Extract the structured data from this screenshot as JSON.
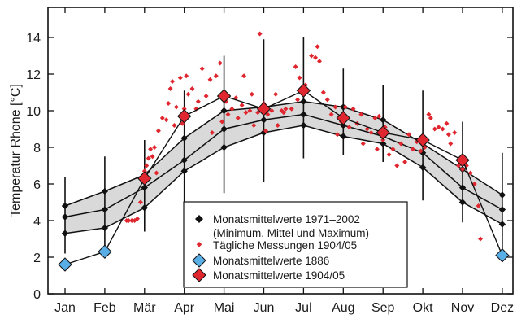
{
  "chart_data": {
    "type": "line",
    "ylabel": "Temperatur Rhone [°C]",
    "xlabel": "",
    "ylim": [
      0,
      15
    ],
    "yticks": [
      0,
      2,
      4,
      6,
      8,
      10,
      12,
      14
    ],
    "categories": [
      "Jan",
      "Feb",
      "Mär",
      "Apr",
      "Mai",
      "Jun",
      "Jul",
      "Aug",
      "Sep",
      "Okt",
      "Nov",
      "Dez"
    ],
    "grid": false,
    "legend_position": "bottom-center",
    "band": {
      "name": "Monatsmittelwerte 1971–2002",
      "sub": "(Minimum, Mittel und Maximum)",
      "min": [
        3.3,
        3.6,
        4.7,
        6.7,
        8.0,
        8.8,
        9.2,
        8.6,
        8.2,
        6.9,
        5.0,
        3.8
      ],
      "mean": [
        4.2,
        4.6,
        5.8,
        7.3,
        9.0,
        9.5,
        9.8,
        9.2,
        8.6,
        7.7,
        5.8,
        4.6
      ],
      "max": [
        4.8,
        5.6,
        6.5,
        8.5,
        10.0,
        10.2,
        10.5,
        10.2,
        9.5,
        8.2,
        6.8,
        5.4
      ]
    },
    "whiskers": {
      "low": [
        2.2,
        2.0,
        3.4,
        3.9,
        5.5,
        6.1,
        7.4,
        7.6,
        7.2,
        5.1,
        3.9,
        2.1
      ],
      "high": [
        6.4,
        7.5,
        8.4,
        11.1,
        13.0,
        13.9,
        14.0,
        12.3,
        11.4,
        11.1,
        9.4,
        7.7
      ]
    },
    "series": [
      {
        "name": "Monatsmittelwerte 1886",
        "values": [
          1.6,
          2.3,
          null,
          null,
          null,
          null,
          null,
          null,
          null,
          null,
          null,
          2.1
        ],
        "color": "#5aaee6"
      },
      {
        "name": "Monatsmittelwerte 1904/05",
        "values": [
          null,
          null,
          6.3,
          9.7,
          10.8,
          10.1,
          11.1,
          9.6,
          8.8,
          8.4,
          7.3,
          null
        ],
        "color": "#e0262e"
      }
    ],
    "daily": {
      "name": "Tägliche Messungen 1904/05",
      "color": "#e0262e",
      "points": [
        [
          2.55,
          4.0
        ],
        [
          2.6,
          4.0
        ],
        [
          2.68,
          4.0
        ],
        [
          2.75,
          4.0
        ],
        [
          2.82,
          4.1
        ],
        [
          2.9,
          5.0
        ],
        [
          2.95,
          6.4
        ],
        [
          3.0,
          6.7
        ],
        [
          3.05,
          7.0
        ],
        [
          3.1,
          7.4
        ],
        [
          3.15,
          7.9
        ],
        [
          3.2,
          7.5
        ],
        [
          3.25,
          8.0
        ],
        [
          3.3,
          6.6
        ],
        [
          3.35,
          8.9
        ],
        [
          3.45,
          9.6
        ],
        [
          3.55,
          9.5
        ],
        [
          3.6,
          10.4
        ],
        [
          3.65,
          11.2
        ],
        [
          3.7,
          11.6
        ],
        [
          3.75,
          9.2
        ],
        [
          3.8,
          10.2
        ],
        [
          3.9,
          11.8
        ],
        [
          3.95,
          9.3
        ],
        [
          4.0,
          10.1
        ],
        [
          4.05,
          11.9
        ],
        [
          4.1,
          10.9
        ],
        [
          4.2,
          11.2
        ],
        [
          4.3,
          10.1
        ],
        [
          4.35,
          10.5
        ],
        [
          4.45,
          12.3
        ],
        [
          4.55,
          10.8
        ],
        [
          4.65,
          11.7
        ],
        [
          4.7,
          8.8
        ],
        [
          4.8,
          11.9
        ],
        [
          4.9,
          12.6
        ],
        [
          4.95,
          9.4
        ],
        [
          5.05,
          10.5
        ],
        [
          5.1,
          9.8
        ],
        [
          5.2,
          10.1
        ],
        [
          5.3,
          10.7
        ],
        [
          5.35,
          9.6
        ],
        [
          5.45,
          10.3
        ],
        [
          5.5,
          11.9
        ],
        [
          5.55,
          9.9
        ],
        [
          5.65,
          10.0
        ],
        [
          5.7,
          10.9
        ],
        [
          5.75,
          9.2
        ],
        [
          5.85,
          9.9
        ],
        [
          5.9,
          14.2
        ],
        [
          6.0,
          10.4
        ],
        [
          6.05,
          8.9
        ],
        [
          6.1,
          9.8
        ],
        [
          6.2,
          10.0
        ],
        [
          6.3,
          10.9
        ],
        [
          6.35,
          9.2
        ],
        [
          6.45,
          10.0
        ],
        [
          6.5,
          9.9
        ],
        [
          6.55,
          10.1
        ],
        [
          6.7,
          10.1
        ],
        [
          6.8,
          12.4
        ],
        [
          6.85,
          10.6
        ],
        [
          6.9,
          11.8
        ],
        [
          7.05,
          11.4
        ],
        [
          7.2,
          13.0
        ],
        [
          7.3,
          12.9
        ],
        [
          7.35,
          13.5
        ],
        [
          7.4,
          12.7
        ],
        [
          7.5,
          11.0
        ],
        [
          7.6,
          10.6
        ],
        [
          7.7,
          9.8
        ],
        [
          7.8,
          10.2
        ],
        [
          7.85,
          8.7
        ],
        [
          7.95,
          9.4
        ],
        [
          8.05,
          10.2
        ],
        [
          8.15,
          9.1
        ],
        [
          8.25,
          10.1
        ],
        [
          8.35,
          9.3
        ],
        [
          8.45,
          9.8
        ],
        [
          8.5,
          8.2
        ],
        [
          8.6,
          9.0
        ],
        [
          8.7,
          8.8
        ],
        [
          8.8,
          9.6
        ],
        [
          8.85,
          7.9
        ],
        [
          8.9,
          9.7
        ],
        [
          9.0,
          8.4
        ],
        [
          9.05,
          9.1
        ],
        [
          9.15,
          7.6
        ],
        [
          9.25,
          7.9
        ],
        [
          9.35,
          7.0
        ],
        [
          9.45,
          8.2
        ],
        [
          9.55,
          7.2
        ],
        [
          9.65,
          8.7
        ],
        [
          9.75,
          7.9
        ],
        [
          9.85,
          8.3
        ],
        [
          9.95,
          7.8
        ],
        [
          10.05,
          8.0
        ],
        [
          10.15,
          9.8
        ],
        [
          10.2,
          9.6
        ],
        [
          10.3,
          9.0
        ],
        [
          10.4,
          9.1
        ],
        [
          10.5,
          9.0
        ],
        [
          10.6,
          9.3
        ],
        [
          10.65,
          8.7
        ],
        [
          10.7,
          8.2
        ],
        [
          10.8,
          8.8
        ],
        [
          10.9,
          7.0
        ],
        [
          11.0,
          6.8
        ],
        [
          11.1,
          7.0
        ],
        [
          11.2,
          6.6
        ],
        [
          11.3,
          6.0
        ],
        [
          11.4,
          4.8
        ],
        [
          11.45,
          3.0
        ]
      ]
    }
  },
  "legend": {
    "band_label": "Monatsmittelwerte 1971–2002",
    "band_sub": "(Minimum, Mittel und Maximum)",
    "daily_label": "Tägliche Messungen 1904/05",
    "s1886_label": "Monatsmittelwerte 1886",
    "s1904_label": "Monatsmittelwerte 1904/05"
  },
  "colors": {
    "band_fill": "#d9d9d9",
    "line": "#111111",
    "red": "#e0262e",
    "blue": "#5aaee6"
  }
}
